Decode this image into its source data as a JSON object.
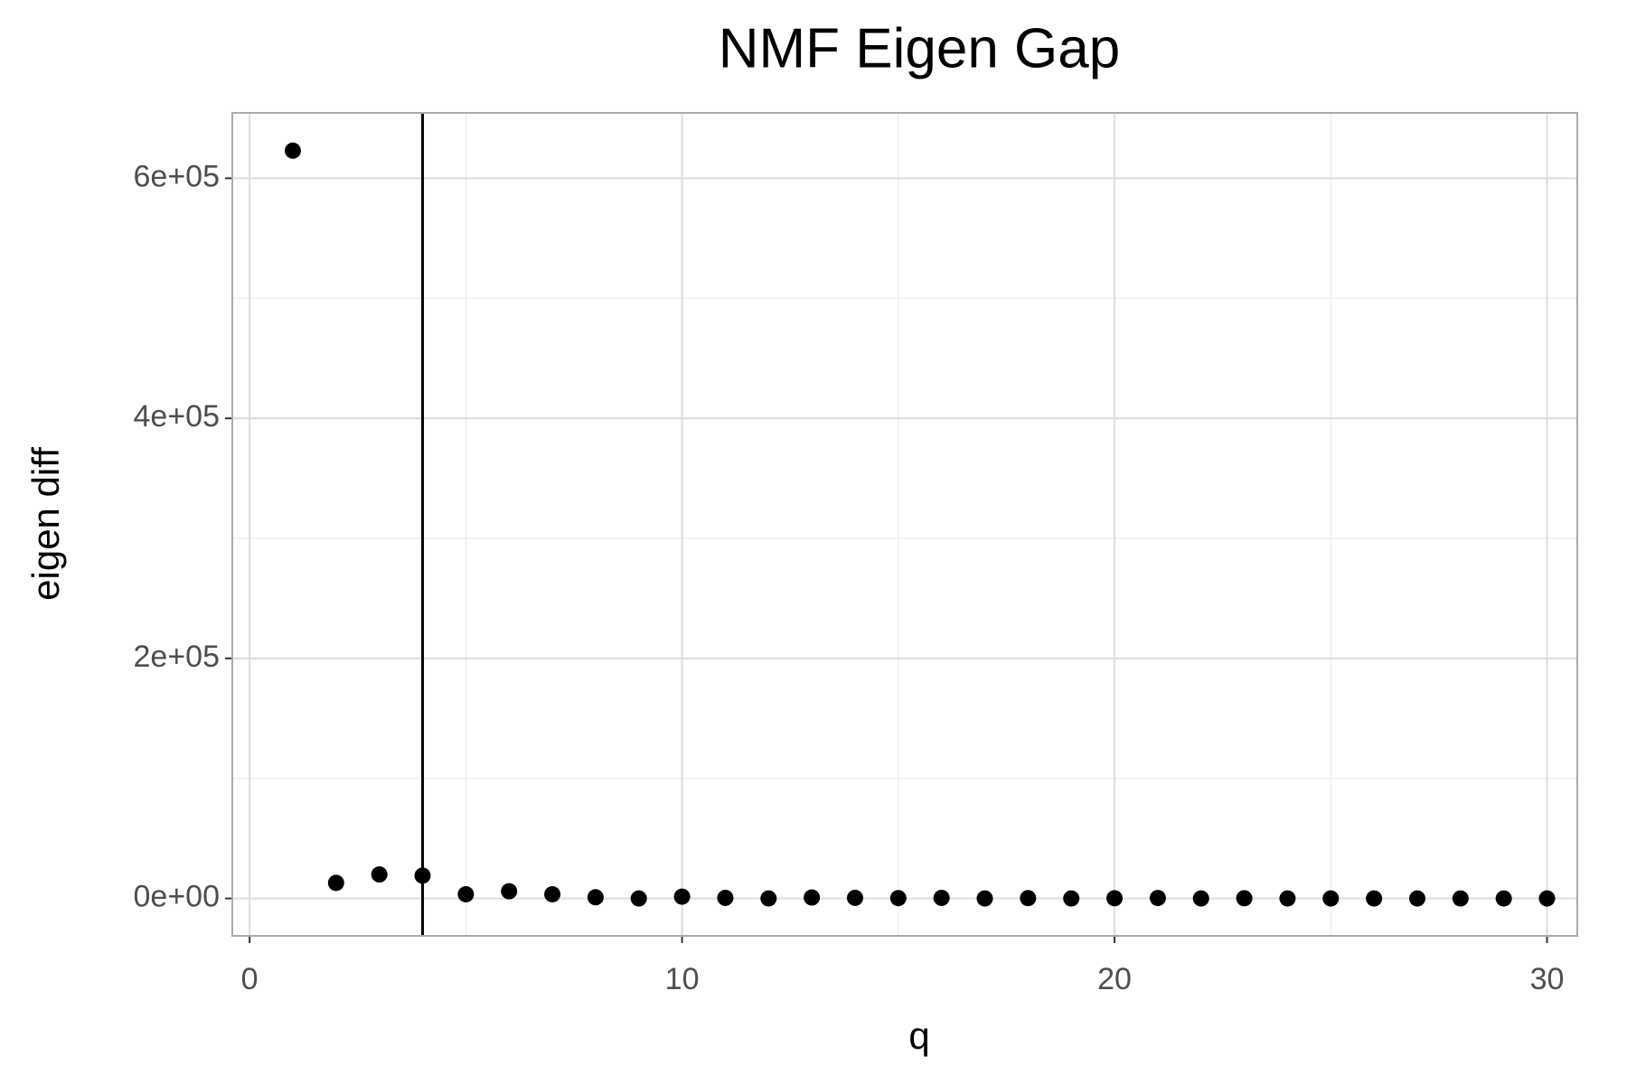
{
  "chart_data": {
    "type": "scatter",
    "title": "NMF Eigen Gap",
    "x_label": "q",
    "y_label": "eigen diff",
    "x": [
      1,
      2,
      3,
      4,
      5,
      6,
      7,
      8,
      9,
      10,
      11,
      12,
      13,
      14,
      15,
      16,
      17,
      18,
      19,
      20,
      21,
      22,
      23,
      24,
      25,
      26,
      27,
      28,
      29,
      30
    ],
    "series": [
      {
        "name": "eigen diff",
        "color": "#000000",
        "values": [
          623000,
          13000,
          20000,
          19000,
          3500,
          6000,
          3500,
          1000,
          0,
          1500,
          500,
          0,
          800,
          500,
          300,
          500,
          0,
          300,
          0,
          200,
          400,
          0,
          200,
          0,
          0,
          0,
          0,
          0,
          0,
          0
        ]
      }
    ],
    "vline": 4,
    "xlim": [
      -0.4,
      30.7
    ],
    "xticks": [
      0,
      10,
      20,
      30
    ],
    "ylim": [
      -31150,
      654450
    ],
    "yticks": [
      {
        "value": 0,
        "label": "0e+00"
      },
      {
        "value": 200000,
        "label": "2e+05"
      },
      {
        "value": 400000,
        "label": "4e+05"
      },
      {
        "value": 600000,
        "label": "6e+05"
      }
    ],
    "grid": true
  }
}
